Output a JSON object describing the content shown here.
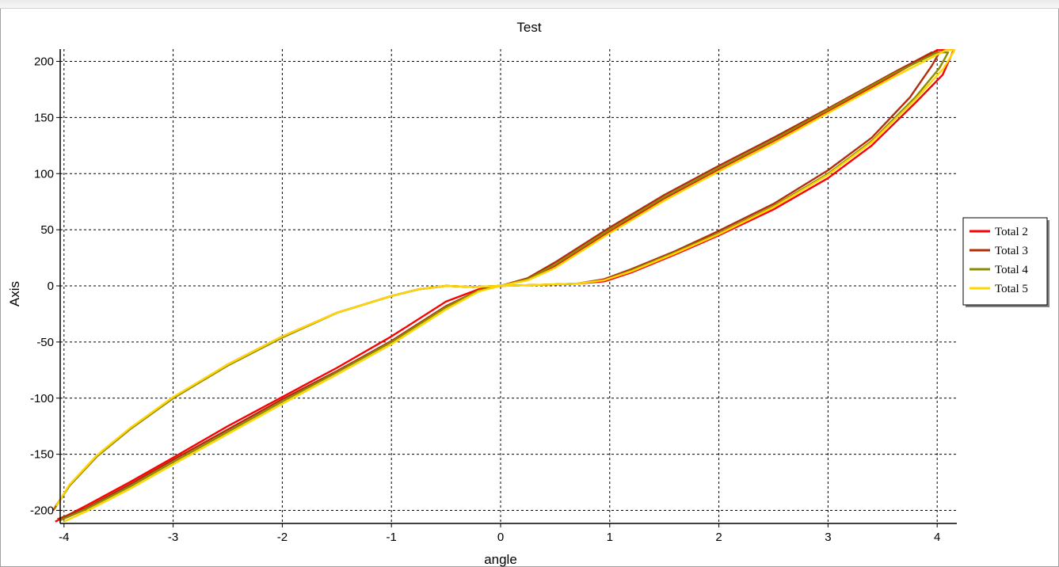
{
  "chart_data": {
    "type": "line",
    "title": "Test",
    "xlabel": "angle",
    "ylabel": "Axis",
    "xlim": [
      -4.1,
      4.18
    ],
    "ylim": [
      -210,
      210
    ],
    "xticks": [
      -4,
      -3,
      -2,
      -1,
      0,
      1,
      2,
      3,
      4
    ],
    "yticks": [
      200,
      150,
      100,
      50,
      0,
      -50,
      -100,
      -150,
      -200
    ],
    "grid": true,
    "legend_position": "right",
    "series": [
      {
        "name": "Total 2",
        "color": "#ff0000",
        "points": [
          [
            -4.08,
            -210
          ],
          [
            -3.8,
            -196
          ],
          [
            -3.4,
            -175
          ],
          [
            -3.0,
            -153
          ],
          [
            -2.5,
            -125
          ],
          [
            -2.0,
            -99
          ],
          [
            -1.5,
            -73
          ],
          [
            -1.0,
            -45
          ],
          [
            -0.5,
            -14
          ],
          [
            -0.2,
            -3
          ],
          [
            0.0,
            0
          ],
          [
            0.4,
            1
          ],
          [
            0.7,
            2
          ],
          [
            0.95,
            4
          ],
          [
            1.2,
            12
          ],
          [
            1.6,
            28
          ],
          [
            2.0,
            45
          ],
          [
            2.5,
            68
          ],
          [
            3.0,
            96
          ],
          [
            3.4,
            125
          ],
          [
            3.8,
            163
          ],
          [
            4.05,
            188
          ],
          [
            4.15,
            210
          ],
          [
            4.0,
            210
          ],
          [
            3.6,
            188
          ],
          [
            3.0,
            155
          ],
          [
            2.5,
            129
          ],
          [
            2.0,
            104
          ],
          [
            1.5,
            78
          ],
          [
            1.0,
            48
          ],
          [
            0.5,
            18
          ],
          [
            0.25,
            6
          ],
          [
            0.0,
            0
          ],
          [
            -0.25,
            -1
          ],
          [
            -0.5,
            0
          ],
          [
            -0.75,
            -3
          ],
          [
            -1.0,
            -9
          ],
          [
            -1.5,
            -24
          ],
          [
            -2.0,
            -45
          ],
          [
            -2.5,
            -70
          ],
          [
            -3.0,
            -100
          ],
          [
            -3.4,
            -128
          ],
          [
            -3.7,
            -152
          ],
          [
            -3.95,
            -178
          ],
          [
            -4.1,
            -200
          ]
        ]
      },
      {
        "name": "Total 3",
        "color": "#b22e0a",
        "points": [
          [
            -4.06,
            -208
          ],
          [
            -3.8,
            -198
          ],
          [
            -3.4,
            -177
          ],
          [
            -3.0,
            -155
          ],
          [
            -2.5,
            -128
          ],
          [
            -2.0,
            -101
          ],
          [
            -1.5,
            -76
          ],
          [
            -1.0,
            -49
          ],
          [
            -0.5,
            -18
          ],
          [
            -0.2,
            -4
          ],
          [
            0.0,
            0
          ],
          [
            0.4,
            1
          ],
          [
            0.7,
            2
          ],
          [
            0.95,
            6
          ],
          [
            1.2,
            15
          ],
          [
            1.6,
            31
          ],
          [
            2.0,
            49
          ],
          [
            2.5,
            73
          ],
          [
            3.0,
            103
          ],
          [
            3.4,
            132
          ],
          [
            3.75,
            168
          ],
          [
            3.95,
            196
          ],
          [
            4.02,
            208
          ],
          [
            3.95,
            208
          ],
          [
            3.6,
            190
          ],
          [
            3.0,
            158
          ],
          [
            2.5,
            132
          ],
          [
            2.0,
            107
          ],
          [
            1.5,
            81
          ],
          [
            1.0,
            52
          ],
          [
            0.5,
            21
          ],
          [
            0.25,
            7
          ],
          [
            0.0,
            0
          ],
          [
            -0.25,
            -1
          ],
          [
            -0.5,
            0
          ],
          [
            -0.75,
            -3
          ],
          [
            -1.0,
            -9
          ],
          [
            -1.5,
            -24
          ],
          [
            -2.0,
            -46
          ],
          [
            -2.5,
            -71
          ],
          [
            -3.0,
            -100
          ],
          [
            -3.4,
            -128
          ],
          [
            -3.7,
            -152
          ],
          [
            -3.95,
            -178
          ],
          [
            -4.08,
            -197
          ]
        ]
      },
      {
        "name": "Total 4",
        "color": "#8c8c00",
        "points": [
          [
            -4.04,
            -209
          ],
          [
            -3.8,
            -199
          ],
          [
            -3.4,
            -179
          ],
          [
            -3.0,
            -157
          ],
          [
            -2.5,
            -130
          ],
          [
            -2.0,
            -103
          ],
          [
            -1.5,
            -77
          ],
          [
            -1.0,
            -50
          ],
          [
            -0.5,
            -19
          ],
          [
            -0.2,
            -4
          ],
          [
            0.0,
            0
          ],
          [
            0.4,
            1
          ],
          [
            0.7,
            2
          ],
          [
            0.95,
            5
          ],
          [
            1.2,
            14
          ],
          [
            1.6,
            30
          ],
          [
            2.0,
            47
          ],
          [
            2.5,
            71
          ],
          [
            3.0,
            100
          ],
          [
            3.4,
            129
          ],
          [
            3.8,
            168
          ],
          [
            4.02,
            194
          ],
          [
            4.1,
            208
          ],
          [
            4.0,
            208
          ],
          [
            3.6,
            189
          ],
          [
            3.0,
            157
          ],
          [
            2.5,
            130
          ],
          [
            2.0,
            105
          ],
          [
            1.5,
            79
          ],
          [
            1.0,
            50
          ],
          [
            0.5,
            19
          ],
          [
            0.25,
            6
          ],
          [
            0.0,
            0
          ],
          [
            -0.25,
            -1
          ],
          [
            -0.5,
            0
          ],
          [
            -0.75,
            -3
          ],
          [
            -1.0,
            -9
          ],
          [
            -1.5,
            -24
          ],
          [
            -2.0,
            -46
          ],
          [
            -2.5,
            -71
          ],
          [
            -3.0,
            -100
          ],
          [
            -3.4,
            -128
          ],
          [
            -3.7,
            -152
          ],
          [
            -3.95,
            -178
          ],
          [
            -4.09,
            -199
          ]
        ]
      },
      {
        "name": "Total 5",
        "color": "#ffd700",
        "points": [
          [
            -4.0,
            -210
          ],
          [
            -3.8,
            -201
          ],
          [
            -3.4,
            -181
          ],
          [
            -3.0,
            -159
          ],
          [
            -2.5,
            -132
          ],
          [
            -2.0,
            -105
          ],
          [
            -1.5,
            -79
          ],
          [
            -1.0,
            -52
          ],
          [
            -0.5,
            -21
          ],
          [
            -0.2,
            -5
          ],
          [
            0.0,
            0
          ],
          [
            0.4,
            1
          ],
          [
            0.7,
            2
          ],
          [
            0.95,
            5
          ],
          [
            1.2,
            13
          ],
          [
            1.6,
            29
          ],
          [
            2.0,
            46
          ],
          [
            2.5,
            70
          ],
          [
            3.0,
            99
          ],
          [
            3.4,
            128
          ],
          [
            3.8,
            166
          ],
          [
            4.06,
            194
          ],
          [
            4.16,
            210
          ],
          [
            4.08,
            210
          ],
          [
            3.6,
            186
          ],
          [
            3.0,
            154
          ],
          [
            2.5,
            127
          ],
          [
            2.0,
            102
          ],
          [
            1.5,
            76
          ],
          [
            1.0,
            47
          ],
          [
            0.5,
            16
          ],
          [
            0.25,
            5
          ],
          [
            0.0,
            0
          ],
          [
            -0.25,
            -1
          ],
          [
            -0.5,
            0
          ],
          [
            -0.75,
            -3
          ],
          [
            -1.0,
            -9
          ],
          [
            -1.5,
            -24
          ],
          [
            -2.0,
            -45
          ],
          [
            -2.5,
            -70
          ],
          [
            -3.0,
            -99
          ],
          [
            -3.4,
            -127
          ],
          [
            -3.7,
            -151
          ],
          [
            -3.95,
            -177
          ],
          [
            -4.07,
            -196
          ]
        ]
      }
    ]
  }
}
